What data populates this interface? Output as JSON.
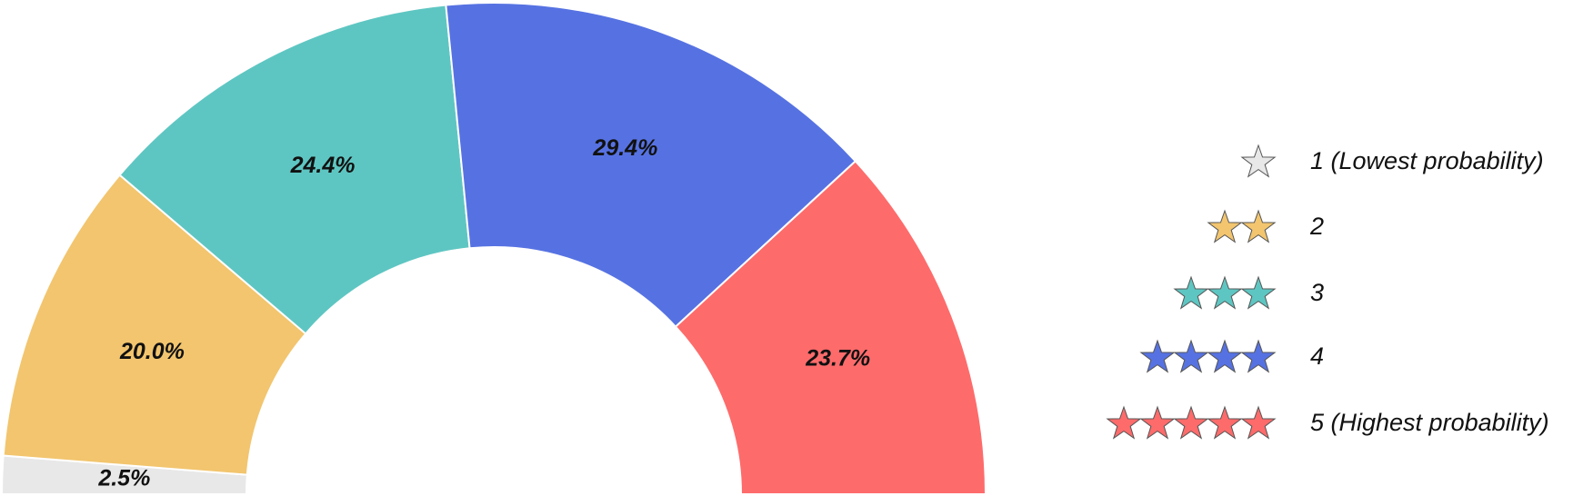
{
  "chart_data": {
    "type": "pie",
    "categories": [
      "1 (Lowest probability)",
      "2",
      "3",
      "4",
      "5 (Highest probability)"
    ],
    "values": [
      2.5,
      20.0,
      24.4,
      29.4,
      23.7
    ],
    "value_labels": [
      "2.5%",
      "20.0%",
      "24.4%",
      "29.4%",
      "23.7%"
    ],
    "colors": [
      "#e8e8e8",
      "#f2c56e",
      "#5ec6c2",
      "#5672e2",
      "#fe6b6b"
    ],
    "legend": "right"
  }
}
